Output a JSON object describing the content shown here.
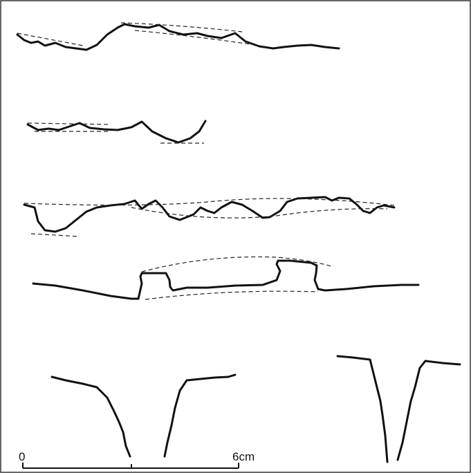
{
  "scale_bar": {
    "start_label": "0",
    "end_label": "6cm"
  }
}
